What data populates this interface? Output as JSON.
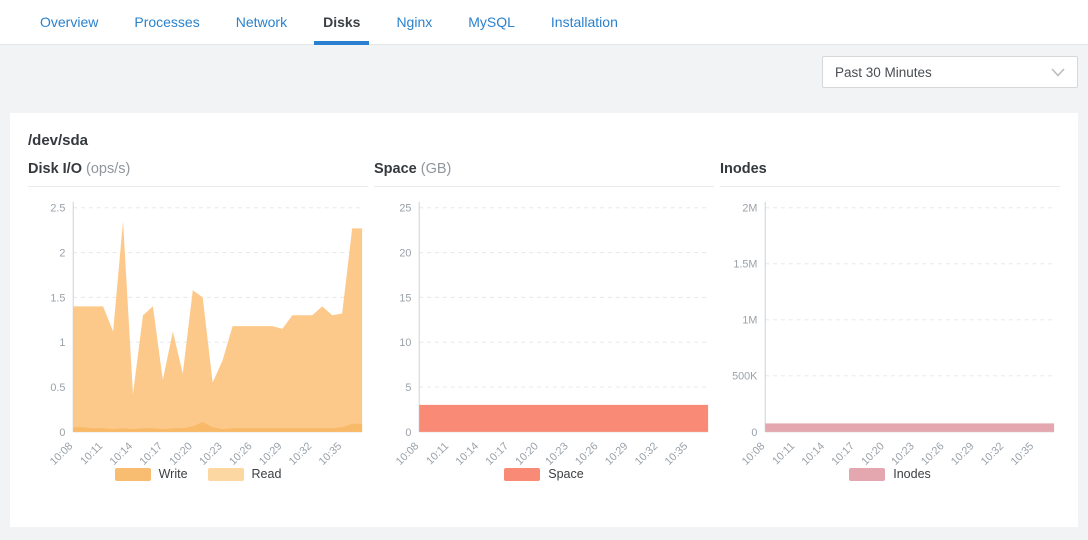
{
  "tabs": [
    "Overview",
    "Processes",
    "Network",
    "Disks",
    "Nginx",
    "MySQL",
    "Installation"
  ],
  "active_tab": "Disks",
  "toolbar": {
    "time_range": "Past 30 Minutes"
  },
  "panel": {
    "title": "/dev/sda"
  },
  "colors": {
    "tab_link": "#2a82cd",
    "active_tab_underline": "#2a7fd0",
    "write": "#f8b968",
    "write_swatch": "#f9bd72",
    "read": "#fdc98b",
    "read_swatch": "#fcd7a2",
    "space": "#f98b76",
    "inodes": "#e5a7af",
    "gridline": "#e5e8eb",
    "axis": "#ccd1d5",
    "tick_label": "#9aa1a8"
  },
  "chart_data": [
    {
      "type": "area",
      "title": "Disk I/O",
      "unit": "(ops/s)",
      "ylim": [
        0,
        2.5
      ],
      "ytick_values": [
        0,
        0.5,
        1,
        1.5,
        2,
        2.5
      ],
      "ytick_labels": [
        "0",
        "0.5",
        "1",
        "1.5",
        "2",
        "2.5"
      ],
      "x_labels": [
        "10:08",
        "10:11",
        "10:14",
        "10:17",
        "10:20",
        "10:23",
        "10:26",
        "10:29",
        "10:32",
        "10:35"
      ],
      "points_per_label": 3,
      "grid": "horizontal-dashed",
      "legend_position": "bottom",
      "series": [
        {
          "name": "Write",
          "color": "#f8b968",
          "swatch": "#f9bd72",
          "values": [
            0.05,
            0.05,
            0.04,
            0.04,
            0.03,
            0.04,
            0.03,
            0.04,
            0.04,
            0.03,
            0.04,
            0.04,
            0.06,
            0.11,
            0.05,
            0.03,
            0.04,
            0.04,
            0.04,
            0.04,
            0.04,
            0.04,
            0.04,
            0.04,
            0.04,
            0.04,
            0.04,
            0.05,
            0.09,
            0.09
          ]
        },
        {
          "name": "Read",
          "color": "#fdc98b",
          "swatch": "#fcd7a2",
          "values": [
            1.4,
            1.4,
            1.4,
            1.4,
            1.12,
            2.35,
            0.42,
            1.3,
            1.4,
            0.58,
            1.12,
            0.65,
            1.58,
            1.5,
            0.55,
            0.8,
            1.18,
            1.18,
            1.18,
            1.18,
            1.18,
            1.15,
            1.3,
            1.3,
            1.3,
            1.4,
            1.3,
            1.32,
            2.27,
            2.27
          ]
        }
      ]
    },
    {
      "type": "area",
      "title": "Space",
      "unit": "(GB)",
      "ylim": [
        0,
        25
      ],
      "ytick_values": [
        0,
        5,
        10,
        15,
        20,
        25
      ],
      "ytick_labels": [
        "0",
        "5",
        "10",
        "15",
        "20",
        "25"
      ],
      "x_labels": [
        "10:08",
        "10:11",
        "10:14",
        "10:17",
        "10:20",
        "10:23",
        "10:26",
        "10:29",
        "10:32",
        "10:35"
      ],
      "points_per_label": 3,
      "grid": "horizontal-dashed",
      "legend_position": "bottom",
      "series": [
        {
          "name": "Space",
          "color": "#f98b76",
          "swatch": "#f98b76",
          "values": [
            3,
            3,
            3,
            3,
            3,
            3,
            3,
            3,
            3,
            3,
            3,
            3,
            3,
            3,
            3,
            3,
            3,
            3,
            3,
            3,
            3,
            3,
            3,
            3,
            3,
            3,
            3,
            3,
            3,
            3
          ]
        }
      ]
    },
    {
      "type": "area",
      "title": "Inodes",
      "unit": "",
      "ylim": [
        0,
        2000000
      ],
      "ytick_values": [
        0,
        500000,
        1000000,
        1500000,
        2000000
      ],
      "ytick_labels": [
        "0",
        "500K",
        "1M",
        "1.5M",
        "2M"
      ],
      "x_labels": [
        "10:08",
        "10:11",
        "10:14",
        "10:17",
        "10:20",
        "10:23",
        "10:26",
        "10:29",
        "10:32",
        "10:35"
      ],
      "points_per_label": 3,
      "grid": "horizontal-dashed",
      "legend_position": "bottom",
      "series": [
        {
          "name": "Inodes",
          "color": "#e5a7af",
          "swatch": "#e5a7af",
          "values": [
            75000,
            75000,
            75000,
            75000,
            75000,
            75000,
            75000,
            75000,
            75000,
            75000,
            75000,
            75000,
            75000,
            75000,
            75000,
            75000,
            75000,
            75000,
            75000,
            75000,
            75000,
            75000,
            75000,
            75000,
            75000,
            75000,
            75000,
            75000,
            75000,
            75000
          ]
        }
      ]
    }
  ]
}
